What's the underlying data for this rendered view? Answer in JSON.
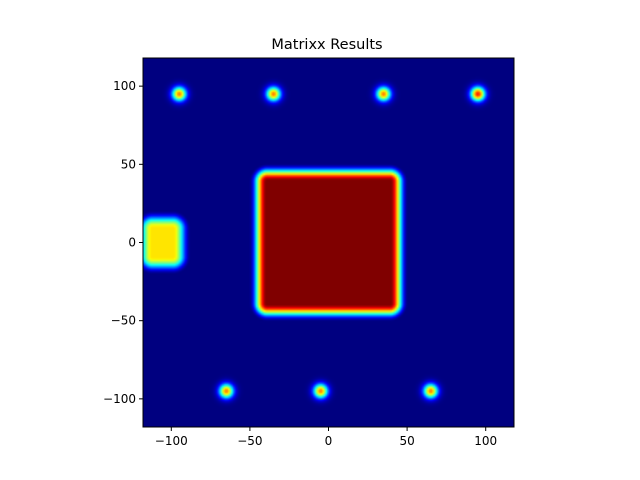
{
  "chart_data": {
    "type": "heatmap",
    "title": "Matrixx Results",
    "xlabel": "",
    "ylabel": "",
    "colormap": "jet",
    "xlim": [
      -118,
      118
    ],
    "ylim": [
      -118,
      118
    ],
    "grid": false,
    "x_ticks": [
      -100,
      -50,
      0,
      50,
      100
    ],
    "y_ticks": [
      -100,
      -50,
      0,
      50,
      100
    ],
    "x_tick_labels": [
      "−100",
      "−50",
      "0",
      "50",
      "100"
    ],
    "y_tick_labels": [
      "−100",
      "−50",
      "0",
      "50",
      "100"
    ],
    "value_range": [
      0,
      1
    ],
    "features": [
      {
        "shape": "square",
        "x0": -45,
        "x1": 45,
        "y0": -45,
        "y1": 45,
        "value": 1.0
      },
      {
        "shape": "square",
        "x0": -118,
        "x1": -93,
        "y0": -15,
        "y1": 15,
        "value": 0.65
      },
      {
        "shape": "spot",
        "x": -95,
        "y": 95,
        "value": 0.75
      },
      {
        "shape": "spot",
        "x": -35,
        "y": 95,
        "value": 0.75
      },
      {
        "shape": "spot",
        "x": 35,
        "y": 95,
        "value": 0.75
      },
      {
        "shape": "spot",
        "x": 95,
        "y": 95,
        "value": 0.85
      },
      {
        "shape": "spot",
        "x": -65,
        "y": -95,
        "value": 0.75
      },
      {
        "shape": "spot",
        "x": -5,
        "y": -95,
        "value": 0.75
      },
      {
        "shape": "spot",
        "x": 65,
        "y": -95,
        "value": 0.75
      }
    ]
  }
}
